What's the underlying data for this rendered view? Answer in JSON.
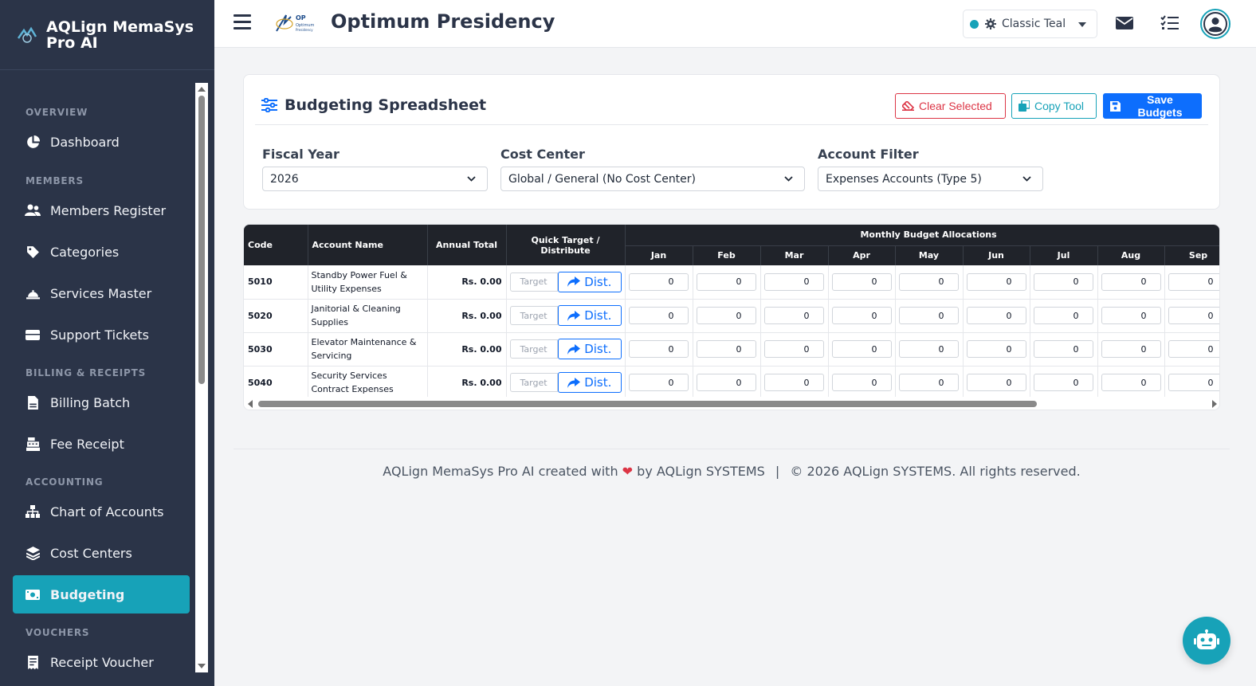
{
  "brand": {
    "name": "AQLign MemaSys Pro AI"
  },
  "sidebar": {
    "sections": [
      {
        "label": "OVERVIEW"
      },
      {
        "label": "MEMBERS"
      },
      {
        "label": "BILLING & RECEIPTS"
      },
      {
        "label": "ACCOUNTING"
      },
      {
        "label": "VOUCHERS"
      }
    ],
    "items": [
      {
        "label": "Dashboard",
        "icon": "pie-chart-icon"
      },
      {
        "label": "Members Register",
        "icon": "users-icon"
      },
      {
        "label": "Categories",
        "icon": "tags-icon"
      },
      {
        "label": "Services Master",
        "icon": "concierge-bell-icon"
      },
      {
        "label": "Support Tickets",
        "icon": "ticket-icon"
      },
      {
        "label": "Billing Batch",
        "icon": "file-invoice-icon"
      },
      {
        "label": "Fee Receipt",
        "icon": "cash-register-icon"
      },
      {
        "label": "Chart of Accounts",
        "icon": "sitemap-icon"
      },
      {
        "label": "Cost Centers",
        "icon": "layers-icon"
      },
      {
        "label": "Budgeting",
        "icon": "money-bill-icon",
        "active": true
      },
      {
        "label": "Receipt Voucher",
        "icon": "receipt-icon"
      }
    ]
  },
  "topbar": {
    "org_name": "Optimum Presidency",
    "org_logo_text": "OP Optimum Presidency",
    "theme": "Classic Teal",
    "theme_color": "#17a2b8"
  },
  "card": {
    "title": "Budgeting Spreadsheet",
    "buttons": {
      "clear": "Clear Selected",
      "copy": "Copy Tool",
      "save": "Save Budgets"
    },
    "filters": {
      "fiscal_year": {
        "label": "Fiscal Year",
        "value": "2026"
      },
      "cost_center": {
        "label": "Cost Center",
        "value": "Global / General (No Cost Center)"
      },
      "account_filter": {
        "label": "Account Filter",
        "value": "Expenses Accounts (Type 5)"
      }
    }
  },
  "table": {
    "headers": {
      "code": "Code",
      "account_name": "Account Name",
      "annual_total": "Annual Total",
      "quick": "Quick Target / Distribute",
      "monthly": "Monthly Budget Allocations"
    },
    "months": [
      "Jan",
      "Feb",
      "Mar",
      "Apr",
      "May",
      "Jun",
      "Jul",
      "Aug",
      "Sep"
    ],
    "target_placeholder": "Target",
    "dist_label": "Dist.",
    "rows": [
      {
        "code": "5010",
        "name": "Standby Power Fuel & Utility Expenses",
        "total": "Rs. 0.00",
        "values": [
          "0",
          "0",
          "0",
          "0",
          "0",
          "0",
          "0",
          "0",
          "0"
        ]
      },
      {
        "code": "5020",
        "name": "Janitorial & Cleaning Supplies",
        "total": "Rs. 0.00",
        "values": [
          "0",
          "0",
          "0",
          "0",
          "0",
          "0",
          "0",
          "0",
          "0"
        ]
      },
      {
        "code": "5030",
        "name": "Elevator Maintenance & Servicing",
        "total": "Rs. 0.00",
        "values": [
          "0",
          "0",
          "0",
          "0",
          "0",
          "0",
          "0",
          "0",
          "0"
        ]
      },
      {
        "code": "5040",
        "name": "Security Services Contract Expenses",
        "total": "Rs. 0.00",
        "values": [
          "0",
          "0",
          "0",
          "0",
          "0",
          "0",
          "0",
          "0",
          "0"
        ]
      }
    ]
  },
  "footer": {
    "text_before": "AQLign MemaSys Pro AI created with",
    "text_after": "by AQLign SYSTEMS",
    "separator": "|",
    "copyright": "© 2026 AQLign SYSTEMS. All rights reserved."
  }
}
